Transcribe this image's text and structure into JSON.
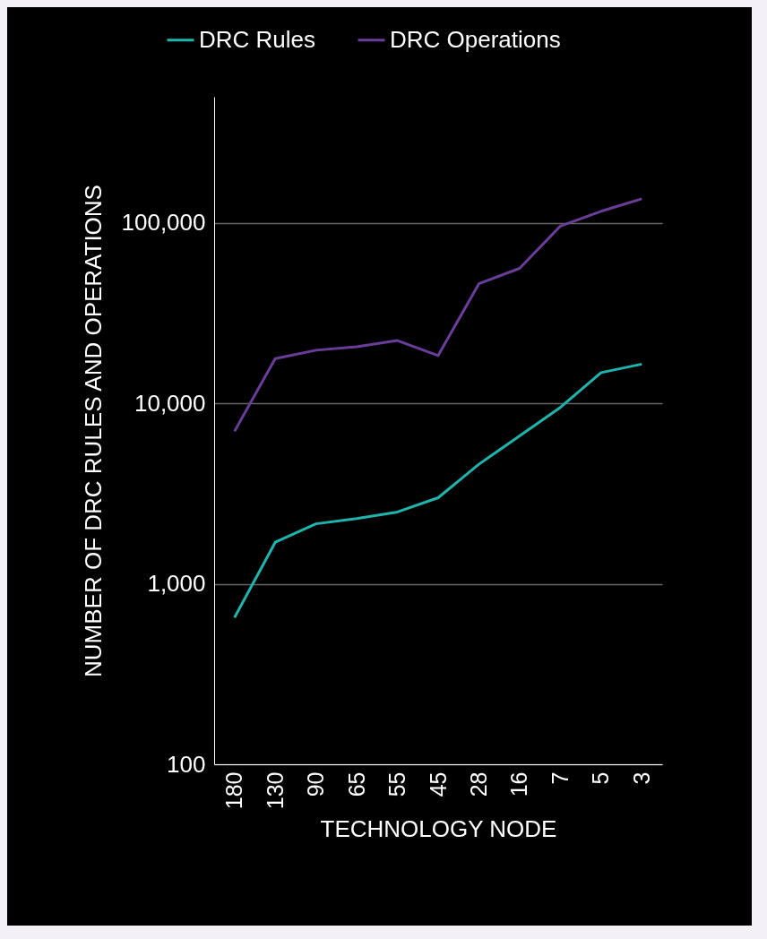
{
  "chart_data": {
    "type": "line",
    "xlabel": "TECHNOLOGY NODE",
    "ylabel": "NUMBER OF DRC RULES AND OPERATIONS",
    "categories": [
      "180",
      "130",
      "90",
      "65",
      "55",
      "45",
      "28",
      "16",
      "7",
      "5",
      "3"
    ],
    "series": [
      {
        "name": "DRC Rules",
        "color": "#1fb5ad",
        "values": [
          650,
          1700,
          2150,
          2300,
          2500,
          3000,
          4600,
          6600,
          9500,
          14800,
          16500
        ]
      },
      {
        "name": "DRC Operations",
        "color": "#6a3d9a",
        "values": [
          7000,
          17700,
          19700,
          20600,
          22300,
          18400,
          46000,
          56000,
          96000,
          116000,
          136000
        ]
      }
    ],
    "log": true,
    "ylim": [
      100,
      500000
    ],
    "yticks": [
      100,
      {
        "value": 1000,
        "label": "1,000"
      },
      {
        "value": 10000,
        "label": "10,000"
      },
      {
        "value": 100000,
        "label": "100,000"
      }
    ],
    "grid": "y",
    "legend": "top"
  }
}
